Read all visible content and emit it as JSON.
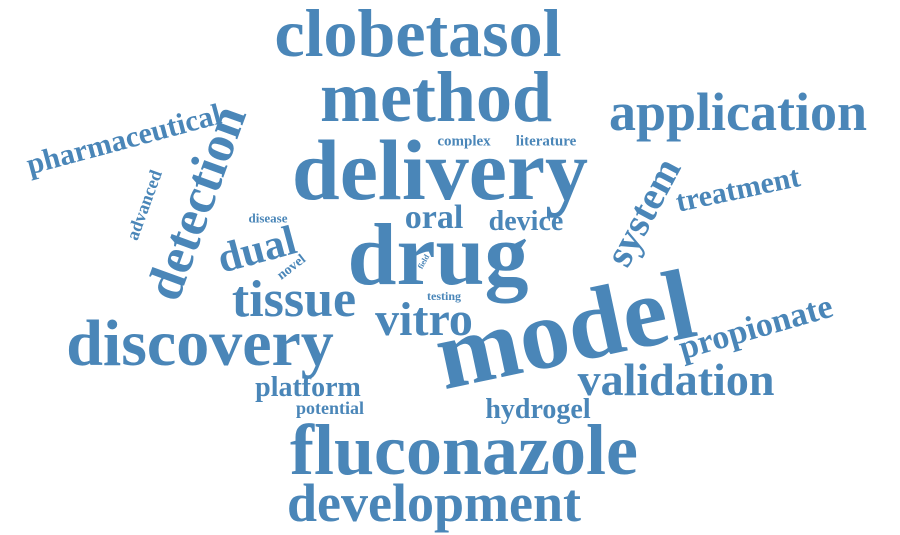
{
  "color": "#4a86b8",
  "words": [
    {
      "key": "clobetasol",
      "text": "clobetasol",
      "weight": 0.88,
      "rotation": 0
    },
    {
      "key": "method",
      "text": "method",
      "weight": 0.92,
      "rotation": 0
    },
    {
      "key": "application",
      "text": "application",
      "weight": 0.74,
      "rotation": 0
    },
    {
      "key": "pharmaceutical",
      "text": "pharmaceutical",
      "weight": 0.45,
      "rotation": -15
    },
    {
      "key": "delivery",
      "text": "delivery",
      "weight": 1.0,
      "rotation": 0
    },
    {
      "key": "complex",
      "text": "complex",
      "weight": 0.22,
      "rotation": 0
    },
    {
      "key": "literature",
      "text": "literature",
      "weight": 0.22,
      "rotation": 0
    },
    {
      "key": "detection",
      "text": "detection",
      "weight": 0.66,
      "rotation": -70
    },
    {
      "key": "advanced",
      "text": "advanced",
      "weight": 0.24,
      "rotation": -70
    },
    {
      "key": "disease",
      "text": "disease",
      "weight": 0.18,
      "rotation": 0
    },
    {
      "key": "oral",
      "text": "oral",
      "weight": 0.48,
      "rotation": 0
    },
    {
      "key": "device",
      "text": "device",
      "weight": 0.38,
      "rotation": 0
    },
    {
      "key": "system",
      "text": "system",
      "weight": 0.54,
      "rotation": -62
    },
    {
      "key": "treatment",
      "text": "treatment",
      "weight": 0.42,
      "rotation": -12
    },
    {
      "key": "dual",
      "text": "dual",
      "weight": 0.56,
      "rotation": -15
    },
    {
      "key": "drug",
      "text": "drug",
      "weight": 1.0,
      "rotation": 0
    },
    {
      "key": "novel",
      "text": "novel",
      "weight": 0.2,
      "rotation": -38
    },
    {
      "key": "field",
      "text": "field",
      "weight": 0.1,
      "rotation": -60
    },
    {
      "key": "model",
      "text": "model",
      "weight": 1.0,
      "rotation": -12
    },
    {
      "key": "tissue",
      "text": "tissue",
      "weight": 0.66,
      "rotation": 0
    },
    {
      "key": "testing",
      "text": "testing",
      "weight": 0.17,
      "rotation": 0
    },
    {
      "key": "vitro",
      "text": "vitro",
      "weight": 0.6,
      "rotation": 0
    },
    {
      "key": "discovery",
      "text": "discovery",
      "weight": 0.86,
      "rotation": 0
    },
    {
      "key": "propionate",
      "text": "propionate",
      "weight": 0.5,
      "rotation": -16
    },
    {
      "key": "validation",
      "text": "validation",
      "weight": 0.6,
      "rotation": 0
    },
    {
      "key": "platform",
      "text": "platform",
      "weight": 0.36,
      "rotation": 0
    },
    {
      "key": "potential",
      "text": "potential",
      "weight": 0.24,
      "rotation": 0
    },
    {
      "key": "hydrogel",
      "text": "hydrogel",
      "weight": 0.36,
      "rotation": 0
    },
    {
      "key": "fluconazole",
      "text": "fluconazole",
      "weight": 0.98,
      "rotation": 0
    },
    {
      "key": "development",
      "text": "development",
      "weight": 0.72,
      "rotation": 0
    }
  ]
}
